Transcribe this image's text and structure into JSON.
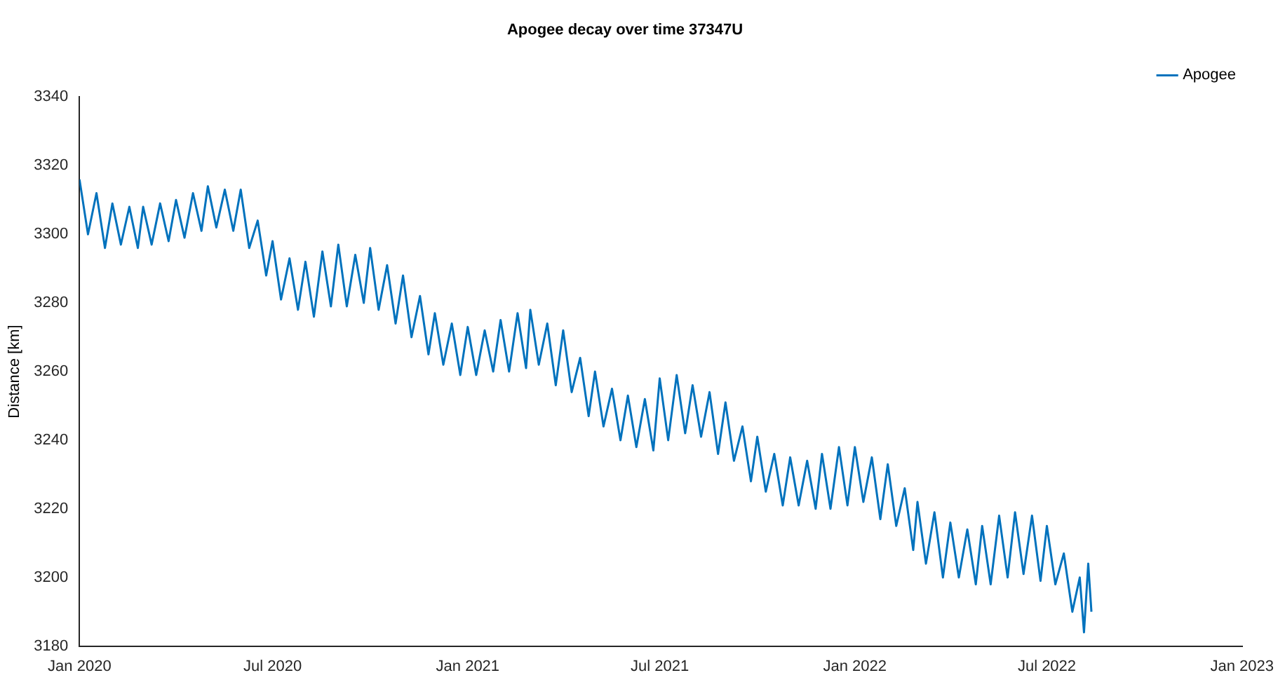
{
  "chart_data": {
    "type": "line",
    "title": "Apogee decay over time 37347U",
    "ylabel": "Distance [km]",
    "x": [
      "2020-01-01",
      "2020-01-09",
      "2020-01-17",
      "2020-01-25",
      "2020-02-01",
      "2020-02-09",
      "2020-02-17",
      "2020-02-25",
      "2020-03-01",
      "2020-03-09",
      "2020-03-17",
      "2020-03-25",
      "2020-04-01",
      "2020-04-09",
      "2020-04-17",
      "2020-04-25",
      "2020-05-01",
      "2020-05-09",
      "2020-05-17",
      "2020-05-25",
      "2020-06-01",
      "2020-06-09",
      "2020-06-17",
      "2020-06-25",
      "2020-07-01",
      "2020-07-09",
      "2020-07-17",
      "2020-07-25",
      "2020-08-01",
      "2020-08-09",
      "2020-08-17",
      "2020-08-25",
      "2020-09-01",
      "2020-09-09",
      "2020-09-17",
      "2020-09-25",
      "2020-10-01",
      "2020-10-09",
      "2020-10-17",
      "2020-10-25",
      "2020-11-01",
      "2020-11-09",
      "2020-11-17",
      "2020-11-25",
      "2020-12-01",
      "2020-12-09",
      "2020-12-17",
      "2020-12-25",
      "2021-01-01",
      "2021-01-09",
      "2021-01-17",
      "2021-01-25",
      "2021-02-01",
      "2021-02-09",
      "2021-02-17",
      "2021-02-25",
      "2021-03-01",
      "2021-03-09",
      "2021-03-17",
      "2021-03-25",
      "2021-04-01",
      "2021-04-09",
      "2021-04-17",
      "2021-04-25",
      "2021-05-01",
      "2021-05-09",
      "2021-05-17",
      "2021-05-25",
      "2021-06-01",
      "2021-06-09",
      "2021-06-17",
      "2021-06-25",
      "2021-07-01",
      "2021-07-09",
      "2021-07-17",
      "2021-07-25",
      "2021-08-01",
      "2021-08-09",
      "2021-08-17",
      "2021-08-25",
      "2021-09-01",
      "2021-09-09",
      "2021-09-17",
      "2021-09-25",
      "2021-10-01",
      "2021-10-09",
      "2021-10-17",
      "2021-10-25",
      "2021-11-01",
      "2021-11-09",
      "2021-11-17",
      "2021-11-25",
      "2021-12-01",
      "2021-12-09",
      "2021-12-17",
      "2021-12-25",
      "2022-01-01",
      "2022-01-09",
      "2022-01-17",
      "2022-01-25",
      "2022-02-01",
      "2022-02-09",
      "2022-02-17",
      "2022-02-25",
      "2022-03-01",
      "2022-03-09",
      "2022-03-17",
      "2022-03-25",
      "2022-04-01",
      "2022-04-09",
      "2022-04-17",
      "2022-04-25",
      "2022-05-01",
      "2022-05-09",
      "2022-05-17",
      "2022-05-25",
      "2022-06-01",
      "2022-06-09",
      "2022-06-17",
      "2022-06-25",
      "2022-07-01",
      "2022-07-09",
      "2022-07-17",
      "2022-07-25",
      "2022-08-01",
      "2022-08-05",
      "2022-08-09",
      "2022-08-12"
    ],
    "series": [
      {
        "name": "Apogee",
        "color": "#0072bd",
        "values": [
          3316,
          3300,
          3312,
          3296,
          3309,
          3297,
          3308,
          3296,
          3308,
          3297,
          3309,
          3298,
          3310,
          3299,
          3312,
          3301,
          3314,
          3302,
          3313,
          3301,
          3313,
          3296,
          3304,
          3288,
          3298,
          3281,
          3293,
          3278,
          3292,
          3276,
          3295,
          3279,
          3297,
          3279,
          3294,
          3280,
          3296,
          3278,
          3291,
          3274,
          3288,
          3270,
          3282,
          3265,
          3277,
          3262,
          3274,
          3259,
          3273,
          3259,
          3272,
          3260,
          3275,
          3260,
          3277,
          3261,
          3278,
          3262,
          3274,
          3256,
          3272,
          3254,
          3264,
          3247,
          3260,
          3244,
          3255,
          3240,
          3253,
          3238,
          3252,
          3237,
          3258,
          3240,
          3259,
          3242,
          3256,
          3241,
          3254,
          3236,
          3251,
          3234,
          3244,
          3228,
          3241,
          3225,
          3236,
          3221,
          3235,
          3221,
          3234,
          3220,
          3236,
          3220,
          3238,
          3221,
          3238,
          3222,
          3235,
          3217,
          3233,
          3215,
          3226,
          3208,
          3222,
          3204,
          3219,
          3200,
          3216,
          3200,
          3214,
          3198,
          3215,
          3198,
          3218,
          3200,
          3219,
          3201,
          3218,
          3199,
          3215,
          3198,
          3207,
          3190,
          3200,
          3184,
          3204,
          3190
        ]
      }
    ],
    "xlim": [
      "2020-01-01",
      "2023-01-01"
    ],
    "xticks": [
      {
        "value": "2020-01-01",
        "label": "Jan 2020"
      },
      {
        "value": "2020-07-01",
        "label": "Jul 2020"
      },
      {
        "value": "2021-01-01",
        "label": "Jan 2021"
      },
      {
        "value": "2021-07-01",
        "label": "Jul 2021"
      },
      {
        "value": "2022-01-01",
        "label": "Jan 2022"
      },
      {
        "value": "2022-07-01",
        "label": "Jul 2022"
      },
      {
        "value": "2023-01-01",
        "label": "Jan 2023"
      }
    ],
    "ylim": [
      3180,
      3340
    ],
    "yticks": [
      3180,
      3200,
      3220,
      3240,
      3260,
      3280,
      3300,
      3320,
      3340
    ],
    "legend": "top right",
    "grid": false,
    "marker": "none",
    "line_style": "solid"
  }
}
